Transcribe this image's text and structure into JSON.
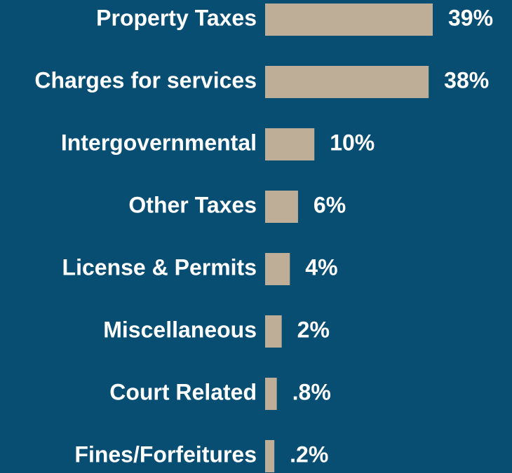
{
  "chart_data": {
    "type": "bar",
    "orientation": "horizontal",
    "categories": [
      "Property Taxes",
      "Charges for services",
      "Intergovernmental",
      "Other Taxes",
      "License & Permits",
      "Miscellaneous",
      "Court Related",
      "Fines/Forfeitures"
    ],
    "values": [
      39,
      38,
      10,
      6,
      4,
      2,
      0.8,
      0.2
    ],
    "value_labels": [
      "39%",
      "38%",
      "10%",
      "6%",
      "4%",
      "2%",
      ".8%",
      ".2%"
    ],
    "color": "#bfae97"
  }
}
